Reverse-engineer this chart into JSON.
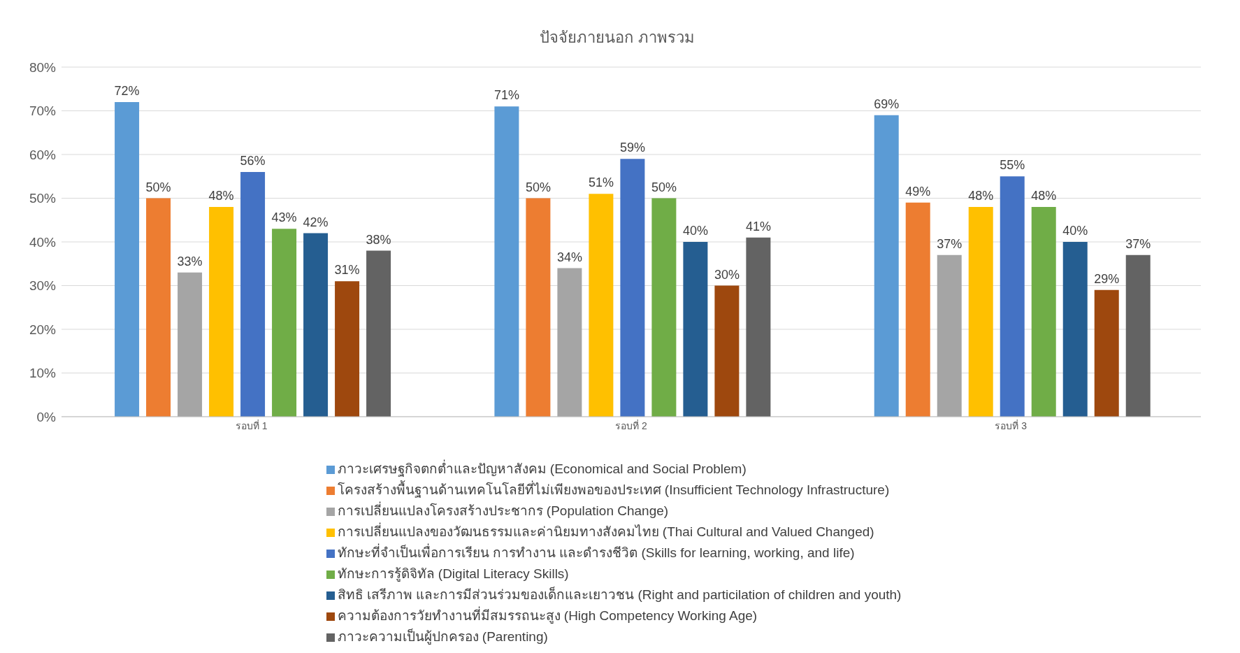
{
  "chart_data": {
    "type": "bar",
    "title": "ปัจจัยภายนอก ภาพรวม",
    "categories": [
      "รอบที่ 1",
      "รอบที่ 2",
      "รอบที่ 3"
    ],
    "series": [
      {
        "name": "ภาวะเศรษฐกิจตกต่ำและปัญหาสังคม (Economical and Social Problem)",
        "color": "#5b9bd5",
        "values": [
          72,
          71,
          69
        ],
        "value_labels": [
          "72%",
          "71%",
          "69%"
        ]
      },
      {
        "name": "โครงสร้างพื้นฐานด้านเทคโนโลยีที่ไม่เพียงพอของประเทศ (Insufficient Technology Infrastructure)",
        "color": "#ed7d31",
        "values": [
          50,
          50,
          49
        ],
        "value_labels": [
          "50%",
          "50%",
          "49%"
        ]
      },
      {
        "name": "การเปลี่ยนแปลงโครงสร้างประชากร (Population Change)",
        "color": "#a5a5a5",
        "values": [
          33,
          34,
          37
        ],
        "value_labels": [
          "33%",
          "34%",
          "37%"
        ]
      },
      {
        "name": "การเปลี่ยนแปลงของวัฒนธรรมและค่านิยมทางสังคมไทย (Thai Cultural and Valued Changed)",
        "color": "#ffc000",
        "values": [
          48,
          51,
          48
        ],
        "value_labels": [
          "48%",
          "51%",
          "48%"
        ]
      },
      {
        "name": "ทักษะที่จำเป็นเพื่อการเรียน การทำงาน และดำรงชีวิต (Skills for learning, working, and life)",
        "color": "#4472c4",
        "values": [
          56,
          59,
          55
        ],
        "value_labels": [
          "56%",
          "59%",
          "55%"
        ]
      },
      {
        "name": "ทักษะการรู้ดิจิทัล (Digital Literacy Skills)",
        "color": "#70ad47",
        "values": [
          43,
          50,
          48
        ],
        "value_labels": [
          "43%",
          "50%",
          "48%"
        ]
      },
      {
        "name": "สิทธิ เสรีภาพ และการมีส่วนร่วมของเด็กและเยาวชน (Right and particilation of children and youth)",
        "color": "#255e91",
        "values": [
          42,
          40,
          40
        ],
        "value_labels": [
          "42%",
          "40%",
          "40%"
        ]
      },
      {
        "name": "ความต้องการวัยทำงานที่มีสมรรถนะสูง (High Competency Working Age)",
        "color": "#9e480e",
        "values": [
          31,
          30,
          29
        ],
        "value_labels": [
          "31%",
          "30%",
          "29%"
        ]
      },
      {
        "name": "ภาวะความเป็นผู้ปกครอง (Parenting)",
        "color": "#636363",
        "values": [
          38,
          41,
          37
        ],
        "value_labels": [
          "38%",
          "41%",
          "37%"
        ]
      }
    ],
    "ylim": [
      0,
      80
    ],
    "yticks": [
      {
        "value": 0,
        "label": "0%"
      },
      {
        "value": 10,
        "label": "10%"
      },
      {
        "value": 20,
        "label": "20%"
      },
      {
        "value": 30,
        "label": "30%"
      },
      {
        "value": 40,
        "label": "40%"
      },
      {
        "value": 50,
        "label": "50%"
      },
      {
        "value": 60,
        "label": "60%"
      },
      {
        "value": 70,
        "label": "70%"
      },
      {
        "value": 80,
        "label": "80%"
      }
    ],
    "grid": "y",
    "legend": "bottom"
  }
}
